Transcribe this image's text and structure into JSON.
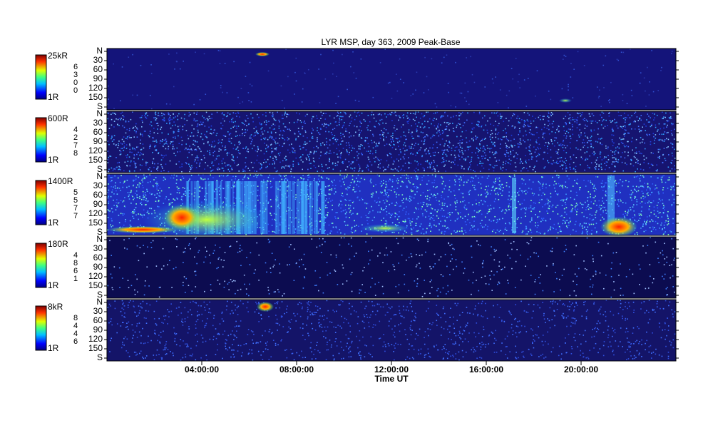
{
  "chart_data": {
    "type": "keogram",
    "title": "LYR MSP, day 363, 2009 Peak-Base",
    "xlabel": "Time UT",
    "xlim": [
      0,
      24
    ],
    "xticks": [
      {
        "value": 4,
        "label": "04:00:00"
      },
      {
        "value": 8,
        "label": "08:00:00"
      },
      {
        "value": 12,
        "label": "12:00:00"
      },
      {
        "value": 16,
        "label": "16:00:00"
      },
      {
        "value": 20,
        "label": "20:00:00"
      }
    ],
    "ylim": [
      0,
      180
    ],
    "yticks": [
      {
        "value": 0,
        "label": "N"
      },
      30,
      60,
      90,
      120,
      150,
      {
        "value": 180,
        "label": "S"
      }
    ],
    "panels": [
      {
        "wavelength": "6300",
        "colorbar_max": "25kR",
        "colorbar_min": "1R"
      },
      {
        "wavelength": "4278",
        "colorbar_max": "600R",
        "colorbar_min": "1R"
      },
      {
        "wavelength": "5577",
        "colorbar_max": "1400R",
        "colorbar_min": "1R"
      },
      {
        "wavelength": "4861",
        "colorbar_max": "180R",
        "colorbar_min": "1R"
      },
      {
        "wavelength": "8446",
        "colorbar_max": "8kR",
        "colorbar_min": "1R"
      }
    ]
  }
}
